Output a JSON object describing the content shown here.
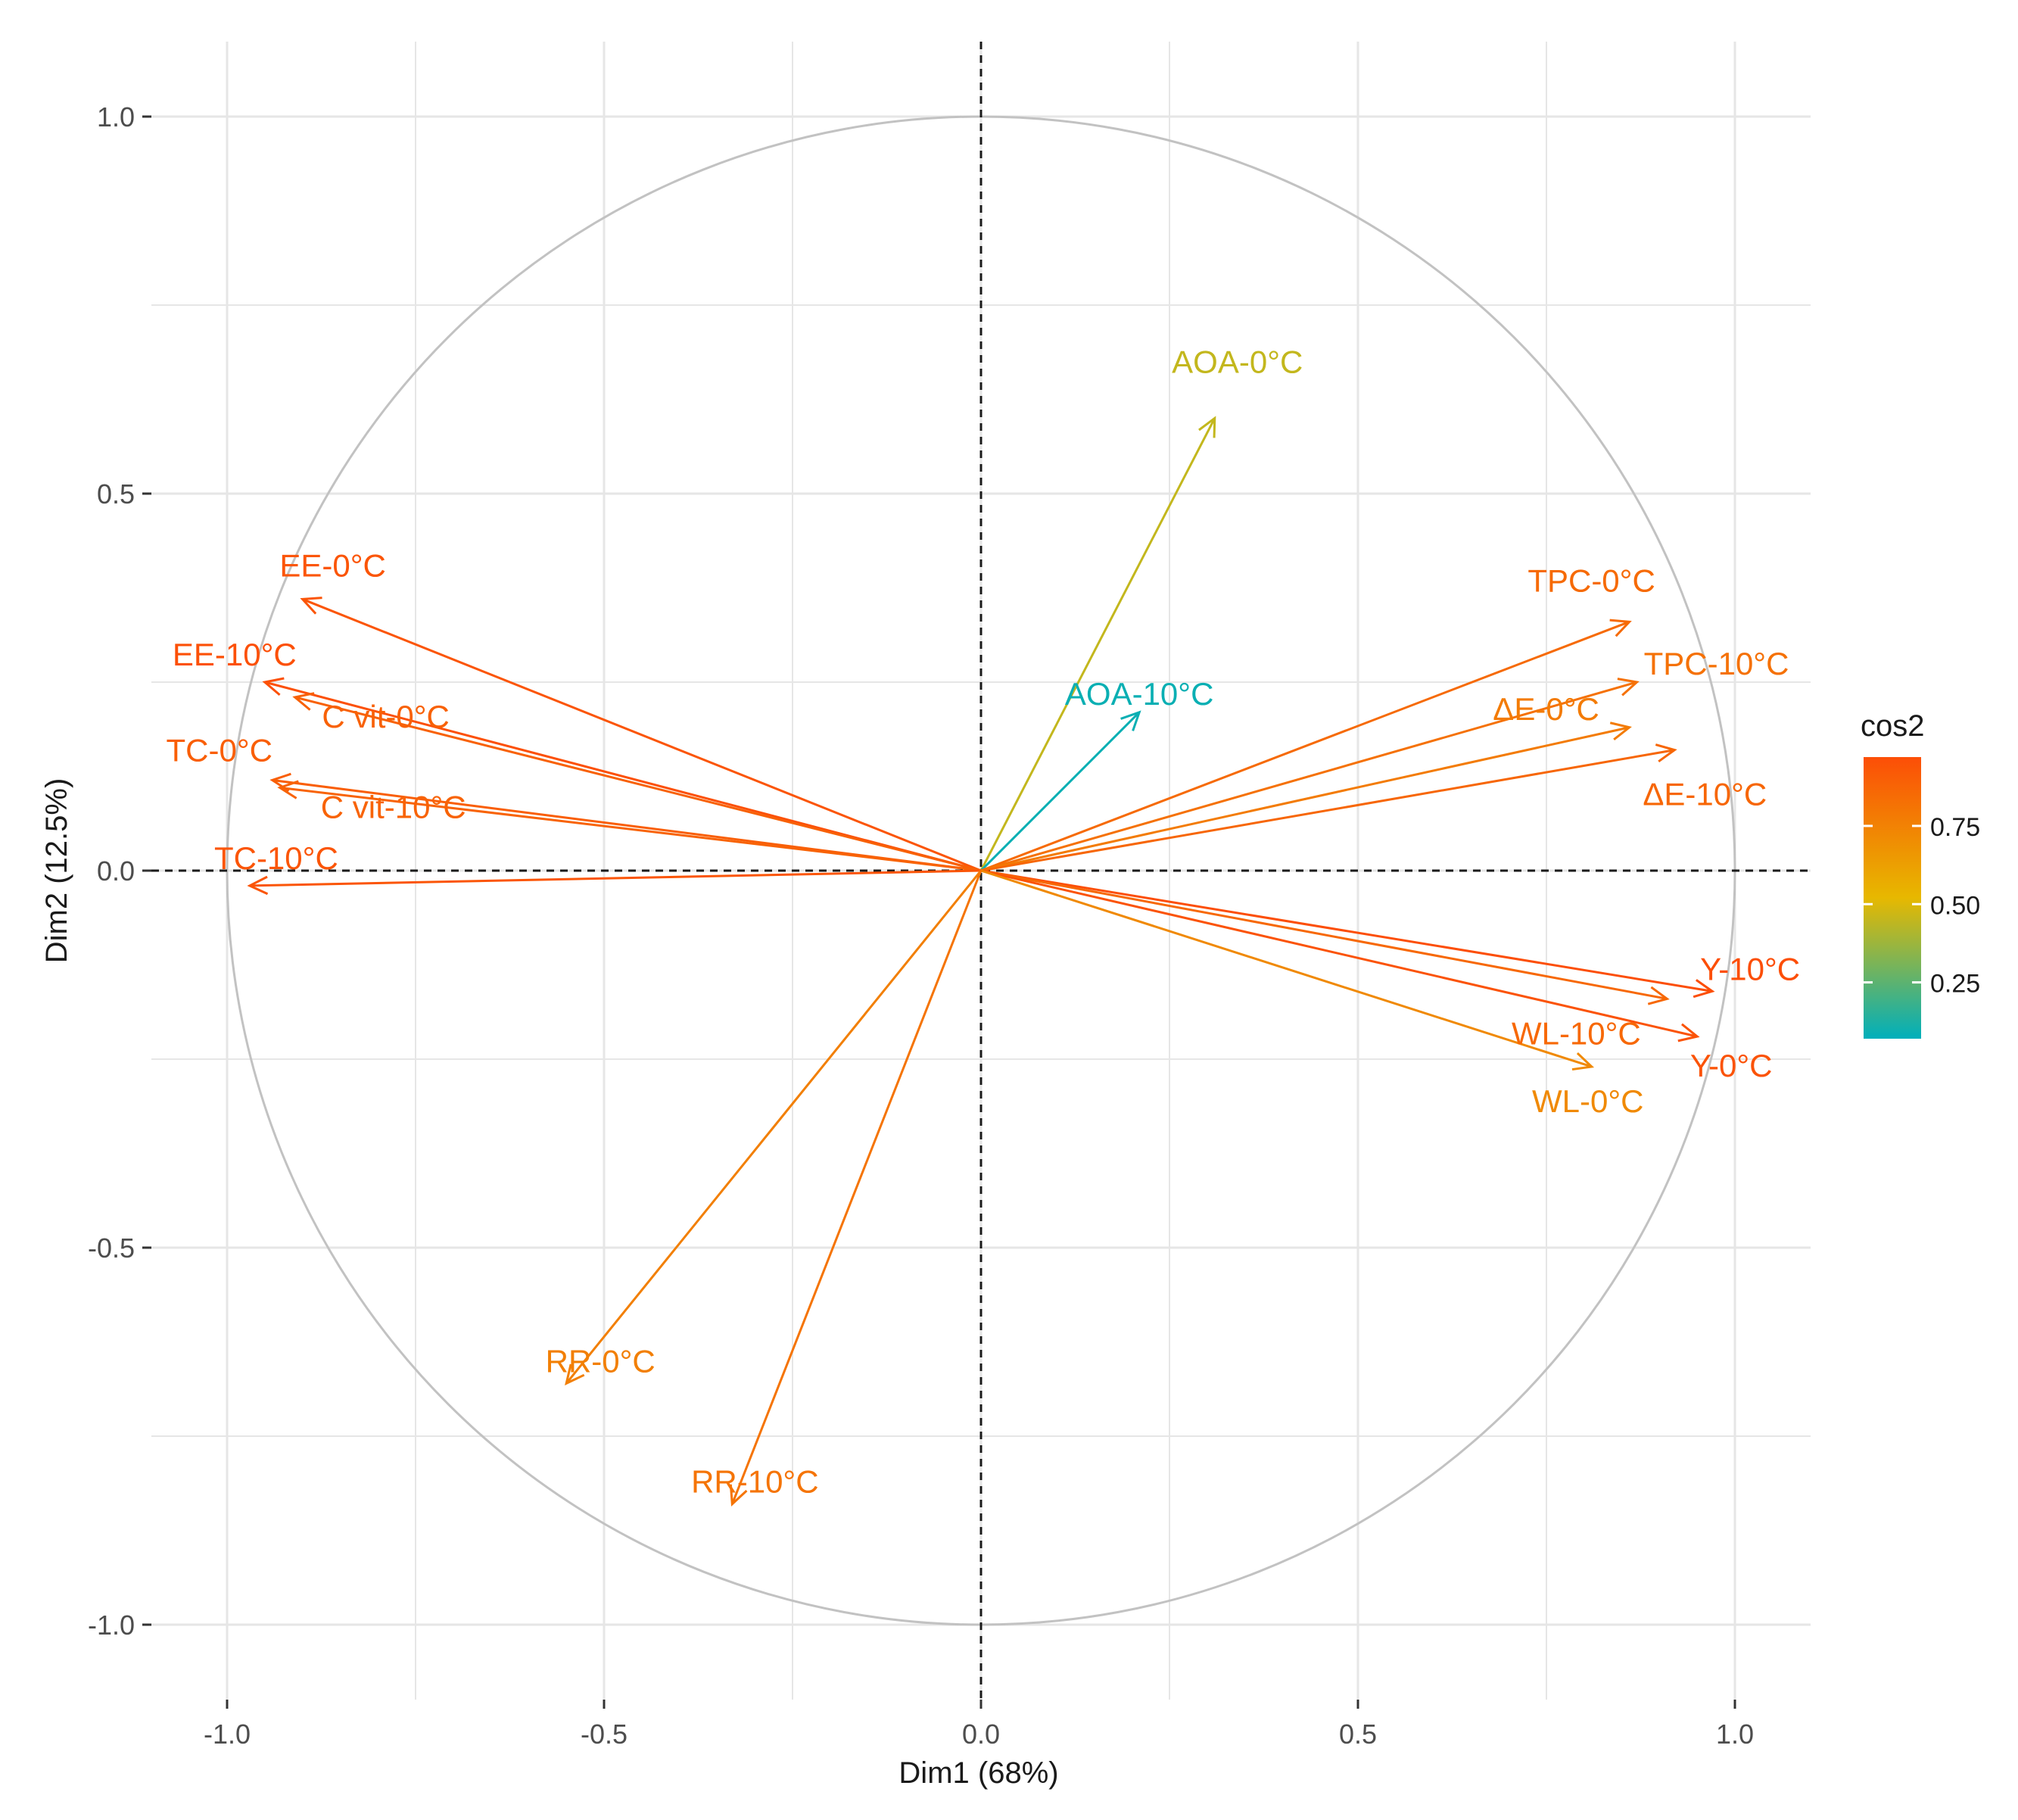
{
  "chart_data": {
    "type": "pca-variable-correlation-circle",
    "title": "",
    "xlabel": "Dim1 (68%)",
    "ylabel": "Dim2 (12.5%)",
    "xlim": [
      -1.0,
      1.0
    ],
    "ylim": [
      -1.0,
      1.0
    ],
    "grid": true,
    "x_ticks": [
      {
        "value": -1.0,
        "label": "-1.0"
      },
      {
        "value": -0.5,
        "label": "-0.5"
      },
      {
        "value": 0.0,
        "label": "0.0"
      },
      {
        "value": 0.5,
        "label": "0.5"
      },
      {
        "value": 1.0,
        "label": "1.0"
      }
    ],
    "y_ticks": [
      {
        "value": 1.0,
        "label": "1.0"
      },
      {
        "value": 0.5,
        "label": "0.5"
      },
      {
        "value": 0.0,
        "label": "0.0"
      },
      {
        "value": -0.5,
        "label": "-0.5"
      },
      {
        "value": -1.0,
        "label": "-1.0"
      }
    ],
    "variables": [
      {
        "name": "AOA-0°C",
        "x": 0.31,
        "y": 0.6,
        "cos2": 0.45
      },
      {
        "name": "AOA-10°C",
        "x": 0.21,
        "y": 0.21,
        "cos2": 0.09
      },
      {
        "name": "EE-0°C",
        "x": -0.9,
        "y": 0.36,
        "cos2": 0.94
      },
      {
        "name": "EE-10°C",
        "x": -0.95,
        "y": 0.25,
        "cos2": 0.96
      },
      {
        "name": "C vit-0°C",
        "x": -0.91,
        "y": 0.23,
        "cos2": 0.89
      },
      {
        "name": "TC-0°C",
        "x": -0.94,
        "y": 0.12,
        "cos2": 0.9
      },
      {
        "name": "C vit-10°C",
        "x": -0.93,
        "y": 0.11,
        "cos2": 0.88
      },
      {
        "name": "TC-10°C",
        "x": -0.97,
        "y": -0.02,
        "cos2": 0.94
      },
      {
        "name": "TPC-0°C",
        "x": 0.86,
        "y": 0.33,
        "cos2": 0.85
      },
      {
        "name": "TPC-10°C",
        "x": 0.87,
        "y": 0.25,
        "cos2": 0.82
      },
      {
        "name": "ΔE-0°C",
        "x": 0.86,
        "y": 0.19,
        "cos2": 0.78
      },
      {
        "name": "ΔE-10°C",
        "x": 0.92,
        "y": 0.16,
        "cos2": 0.87
      },
      {
        "name": "Y-10°C",
        "x": 0.97,
        "y": -0.16,
        "cos2": 0.97
      },
      {
        "name": "WL-10°C",
        "x": 0.91,
        "y": -0.17,
        "cos2": 0.86
      },
      {
        "name": "Y-0°C",
        "x": 0.95,
        "y": -0.22,
        "cos2": 0.95
      },
      {
        "name": "WL-0°C",
        "x": 0.81,
        "y": -0.26,
        "cos2": 0.72
      },
      {
        "name": "RR-0°C",
        "x": -0.55,
        "y": -0.68,
        "cos2": 0.76
      },
      {
        "name": "RR-10°C",
        "x": -0.33,
        "y": -0.84,
        "cos2": 0.81
      }
    ],
    "legend": {
      "title": "cos2",
      "position": "right",
      "ticks": [
        {
          "value": 0.75,
          "label": "0.75"
        },
        {
          "value": 0.5,
          "label": "0.50"
        },
        {
          "value": 0.25,
          "label": "0.25"
        }
      ],
      "gradient_range": [
        0.07,
        0.97
      ],
      "colors": [
        "#00AFBB",
        "#E7B800",
        "#FC4E07"
      ]
    },
    "colors": {
      "grid": "#e6e6e6",
      "circle": "#c2c2c2",
      "axis_dash": "#1a1a1a",
      "tick_text": "#4d4d4d",
      "axis_title": "#1a1a1a"
    }
  }
}
